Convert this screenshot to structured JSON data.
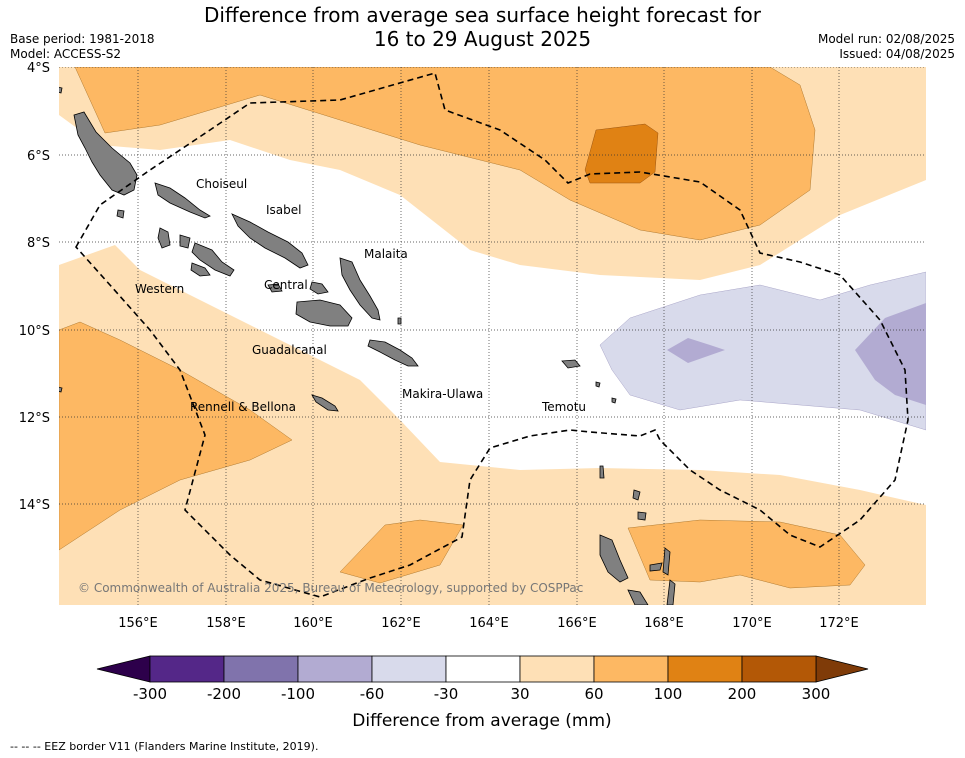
{
  "title_line1": "Difference from average sea surface height forecast for",
  "title_line2": "16 to 29 August 2025",
  "base_period": "Base period: 1981-2018",
  "model": "Model: ACCESS-S2",
  "model_run": "Model run: 02/08/2025",
  "issued": "Issued: 04/08/2025",
  "lat_labels": [
    "4°S",
    "6°S",
    "8°S",
    "10°S",
    "12°S",
    "14°S"
  ],
  "lon_labels": [
    "156°E",
    "158°E",
    "160°E",
    "162°E",
    "164°E",
    "166°E",
    "168°E",
    "170°E",
    "172°E"
  ],
  "place_labels": [
    "Choiseul",
    "Isabel",
    "Malaita",
    "Western",
    "Central",
    "Guadalcanal",
    "Makira-Ulawa",
    "Rennell & Bellona",
    "Temotu"
  ],
  "copyright": "© Commonwealth of Australia 2025, Bureau of Meteorology, supported by COSPPac",
  "colorbar": {
    "ticks": [
      "-300",
      "-200",
      "-100",
      "-60",
      "-30",
      "30",
      "60",
      "100",
      "200",
      "300"
    ],
    "colors": [
      "#542788",
      "#8073ac",
      "#b2abd2",
      "#d8daeb",
      "#ffffff",
      "#fee0b6",
      "#fdb863",
      "#e08214",
      "#b35806"
    ],
    "under_color": "#2d004b",
    "over_color": "#7f3b08",
    "label": "Difference from average (mm)"
  },
  "footer": "--  --  -- EEZ border V11 (Flanders Marine Institute, 2019).",
  "colors": {
    "land": "#808080",
    "eez_border": "#000000"
  }
}
